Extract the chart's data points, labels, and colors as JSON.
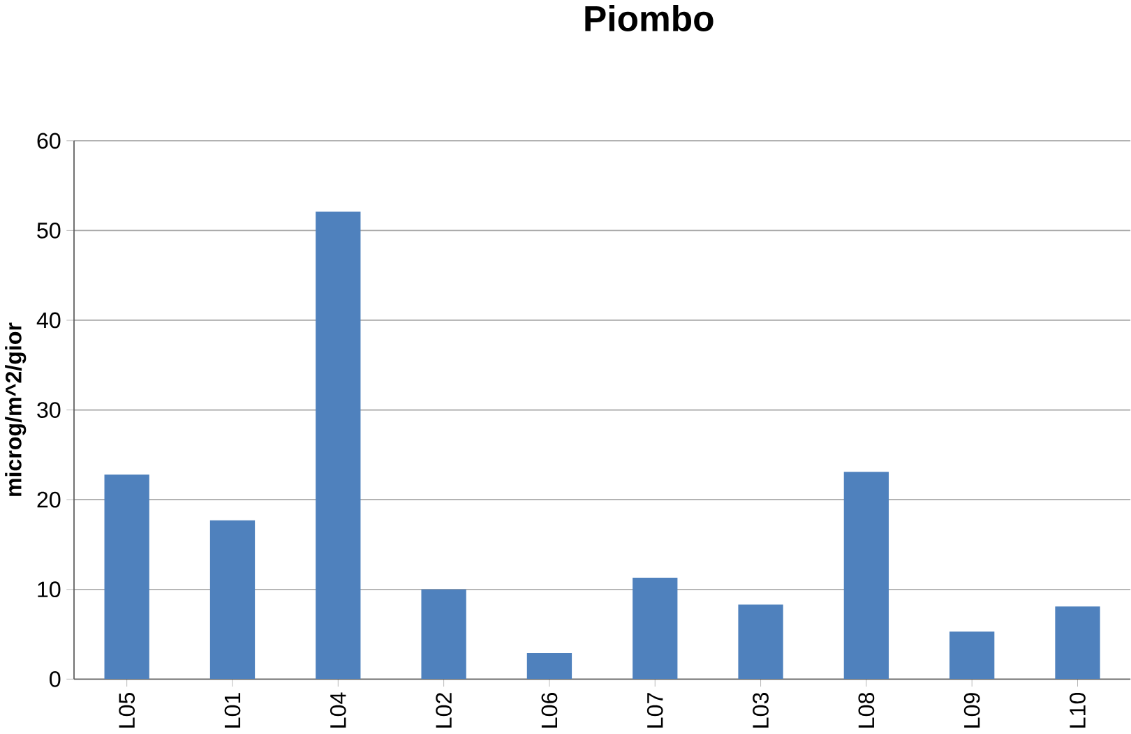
{
  "chart_data": {
    "type": "bar",
    "title": "Piombo",
    "ylabel": "microg/m^2/gior",
    "categories": [
      "L05",
      "L01",
      "L04",
      "L02",
      "L06",
      "L07",
      "L03",
      "L08",
      "L09",
      "L10"
    ],
    "values": [
      22.8,
      17.7,
      52.1,
      10.0,
      2.9,
      11.3,
      8.3,
      23.1,
      5.3,
      8.1
    ],
    "color": "#4f81bd",
    "ylim": [
      0,
      60
    ],
    "yticks": [
      0,
      10,
      20,
      30,
      40,
      50,
      60
    ],
    "grid": "y"
  }
}
